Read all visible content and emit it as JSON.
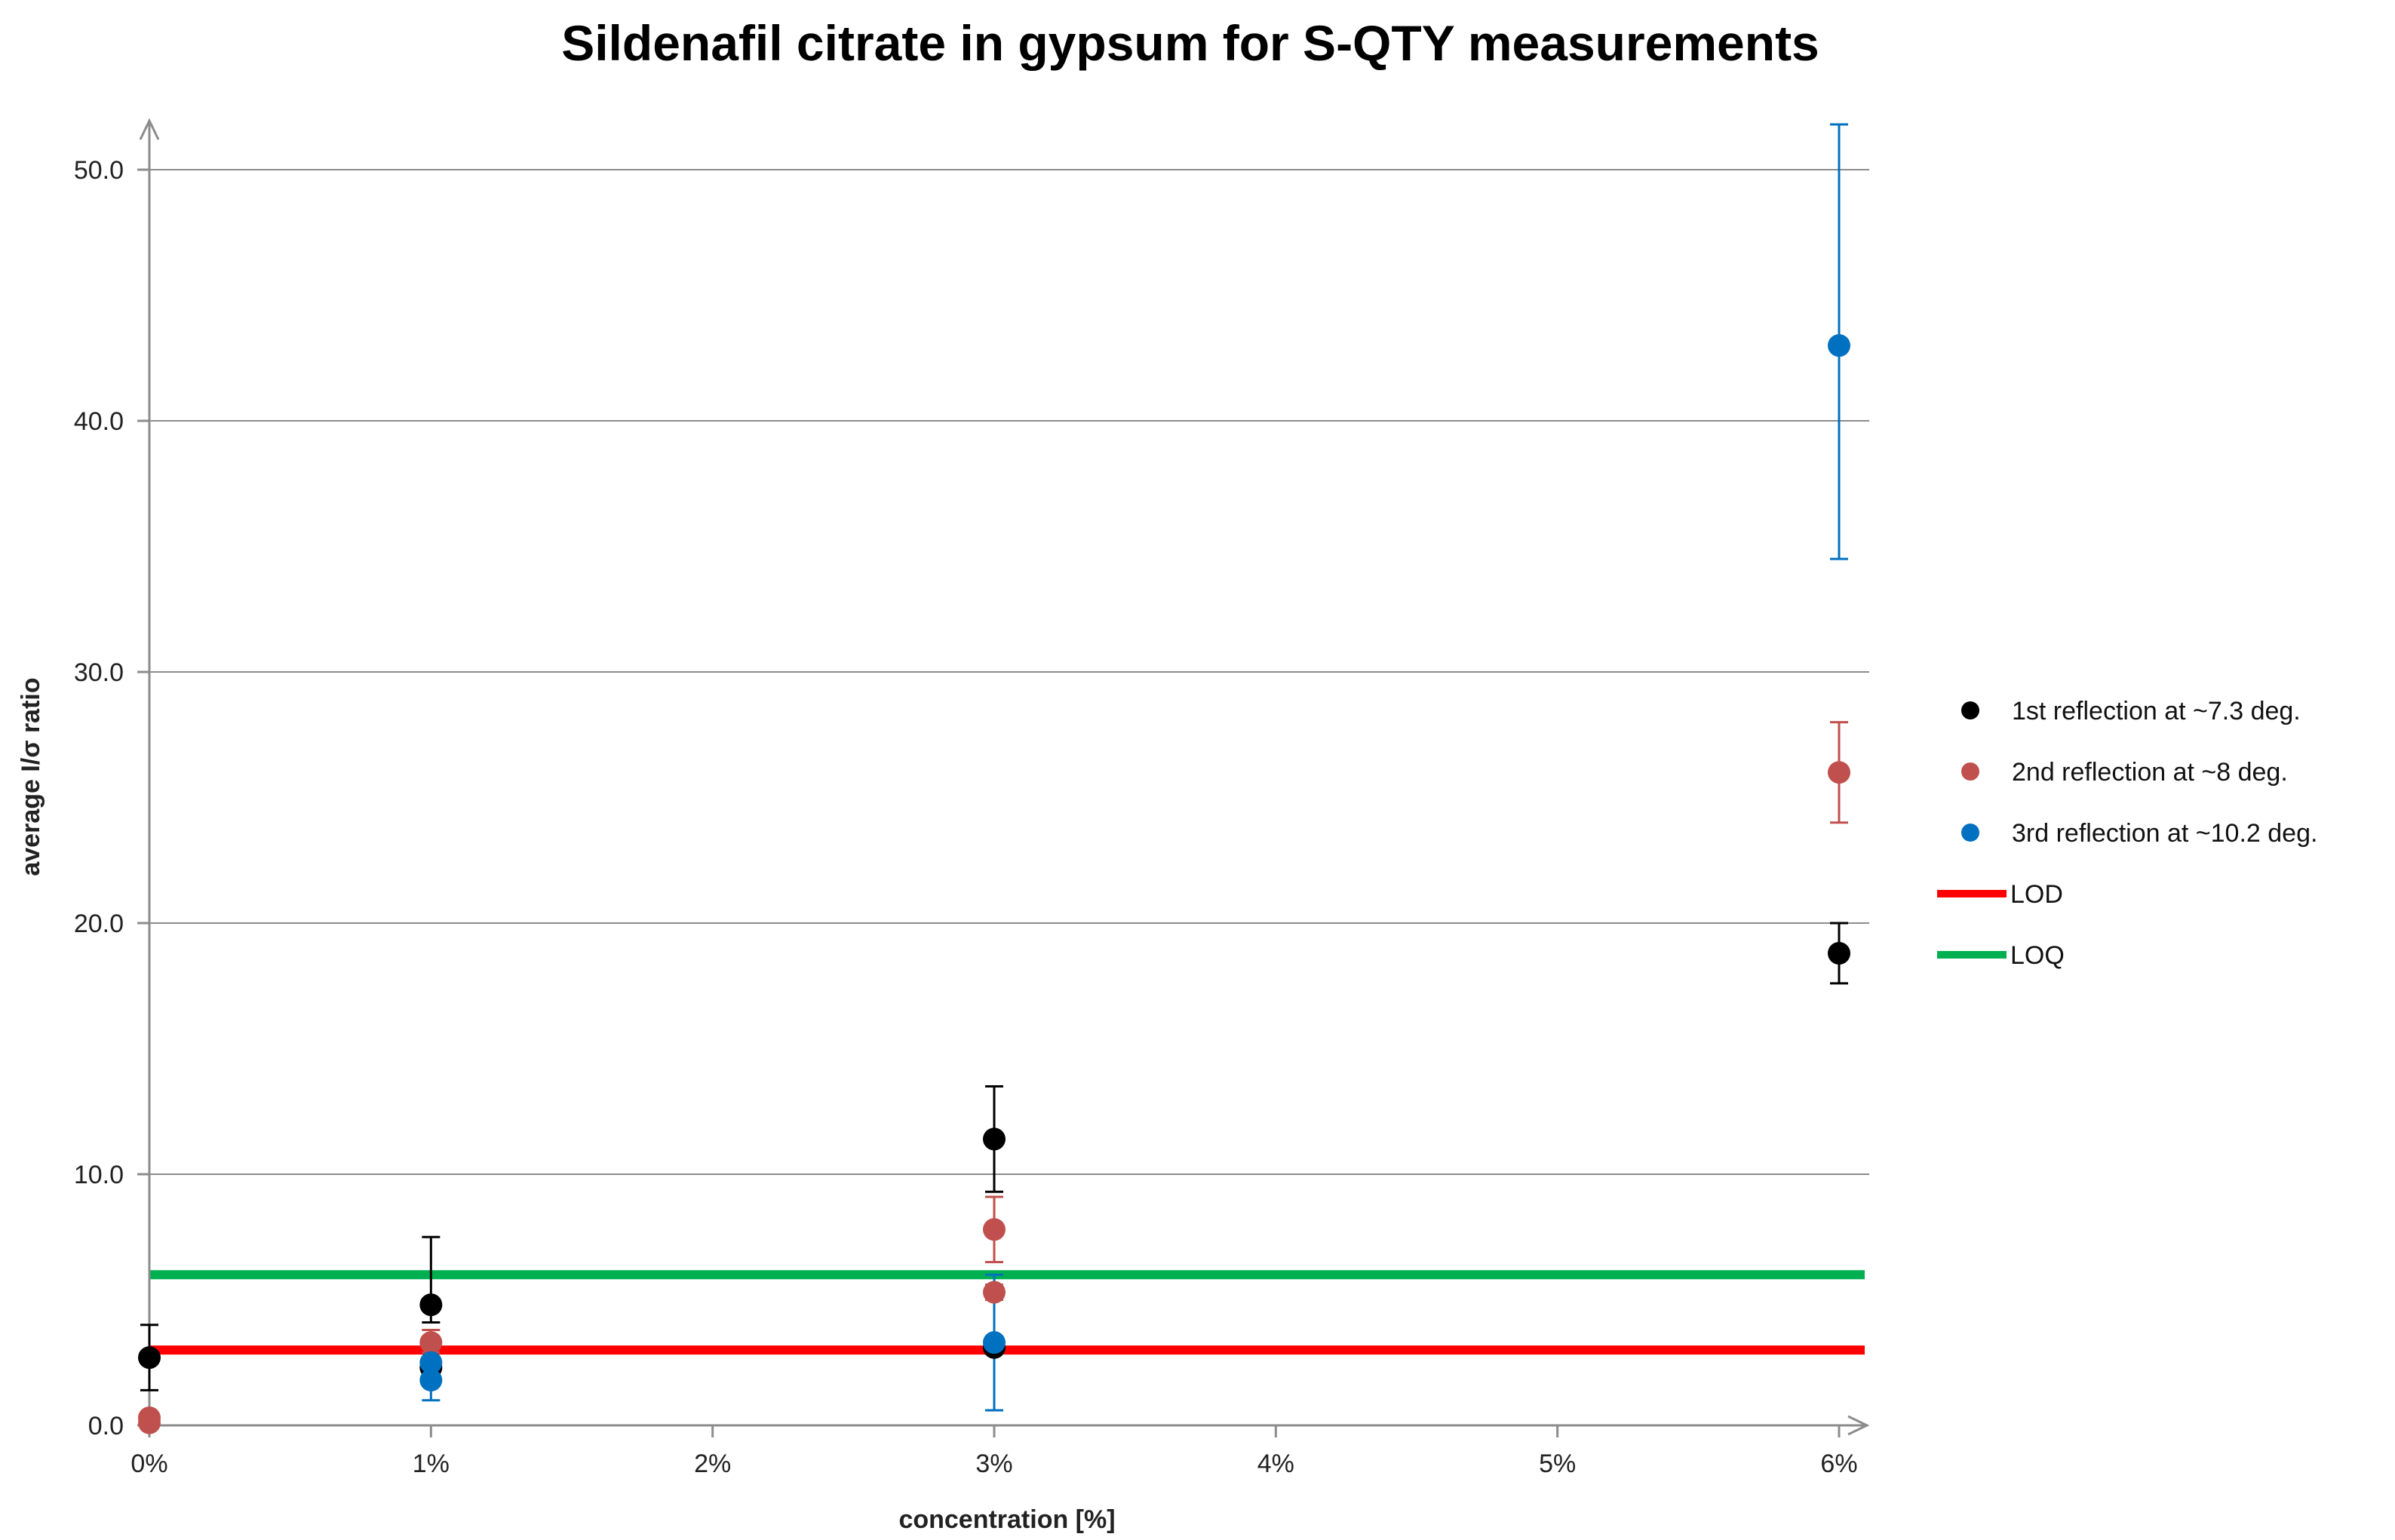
{
  "chart_data": {
    "type": "scatter",
    "title": "Sildenafil citrate in gypsum for S-QTY measurements",
    "xlabel": "concentration [%]",
    "ylabel": "average I/σ ratio",
    "xlim": [
      0,
      6
    ],
    "ylim": [
      0,
      50
    ],
    "x_ticks": [
      {
        "value": 0,
        "label": "0%"
      },
      {
        "value": 1,
        "label": "1%"
      },
      {
        "value": 2,
        "label": "2%"
      },
      {
        "value": 3,
        "label": "3%"
      },
      {
        "value": 4,
        "label": "4%"
      },
      {
        "value": 5,
        "label": "5%"
      },
      {
        "value": 6,
        "label": "6%"
      }
    ],
    "y_ticks": [
      {
        "value": 0,
        "label": "0.0"
      },
      {
        "value": 10,
        "label": "10.0"
      },
      {
        "value": 20,
        "label": "20.0"
      },
      {
        "value": 30,
        "label": "30.0"
      },
      {
        "value": 40,
        "label": "40.0"
      },
      {
        "value": 50,
        "label": "50.0"
      }
    ],
    "grid": "horizontal",
    "legend_position": "right",
    "series": [
      {
        "name": "1st reflection at  ~7.3 deg.",
        "color": "#000000",
        "points": [
          {
            "x": 0,
            "y": 2.7,
            "err_low": 1.4,
            "err_high": 4.0
          },
          {
            "x": 1,
            "y": 2.3,
            "err_low": 2.1,
            "err_high": 2.5
          },
          {
            "x": 1,
            "y": 4.8,
            "err_low": 4.1,
            "err_high": 7.5
          },
          {
            "x": 3,
            "y": 3.1,
            "err_low": 2.9,
            "err_high": 3.3
          },
          {
            "x": 3,
            "y": 11.4,
            "err_low": 9.3,
            "err_high": 13.5
          },
          {
            "x": 6,
            "y": 18.8,
            "err_low": 17.6,
            "err_high": 20.0
          }
        ]
      },
      {
        "name": "2nd reflection at  ~8 deg.",
        "color": "#C0504D",
        "points": [
          {
            "x": 0,
            "y": 0.3,
            "err_low": 0.1,
            "err_high": 0.5
          },
          {
            "x": 0,
            "y": 0.1,
            "err_low": 0.0,
            "err_high": 0.2
          },
          {
            "x": 1,
            "y": 3.3,
            "err_low": 2.9,
            "err_high": 3.8
          },
          {
            "x": 3,
            "y": 5.3,
            "err_low": 5.0,
            "err_high": 5.6
          },
          {
            "x": 3,
            "y": 7.8,
            "err_low": 6.5,
            "err_high": 9.1
          },
          {
            "x": 6,
            "y": 26.0,
            "err_low": 24.0,
            "err_high": 28.0
          }
        ]
      },
      {
        "name": "3rd reflection at  ~10.2 deg.",
        "color": "#0070C0",
        "points": [
          {
            "x": 1,
            "y": 1.8,
            "err_low": 1.0,
            "err_high": 2.6
          },
          {
            "x": 1,
            "y": 2.5,
            "err_low": 1.9,
            "err_high": 3.1
          },
          {
            "x": 3,
            "y": 3.3,
            "err_low": 0.6,
            "err_high": 6.0
          },
          {
            "x": 6,
            "y": 43.0,
            "err_low": 34.5,
            "err_high": 51.8
          }
        ]
      }
    ],
    "reference_lines": [
      {
        "name": "LOD",
        "y": 3.0,
        "color": "#FF0000"
      },
      {
        "name": "LOQ",
        "y": 6.0,
        "color": "#00B050"
      }
    ]
  }
}
